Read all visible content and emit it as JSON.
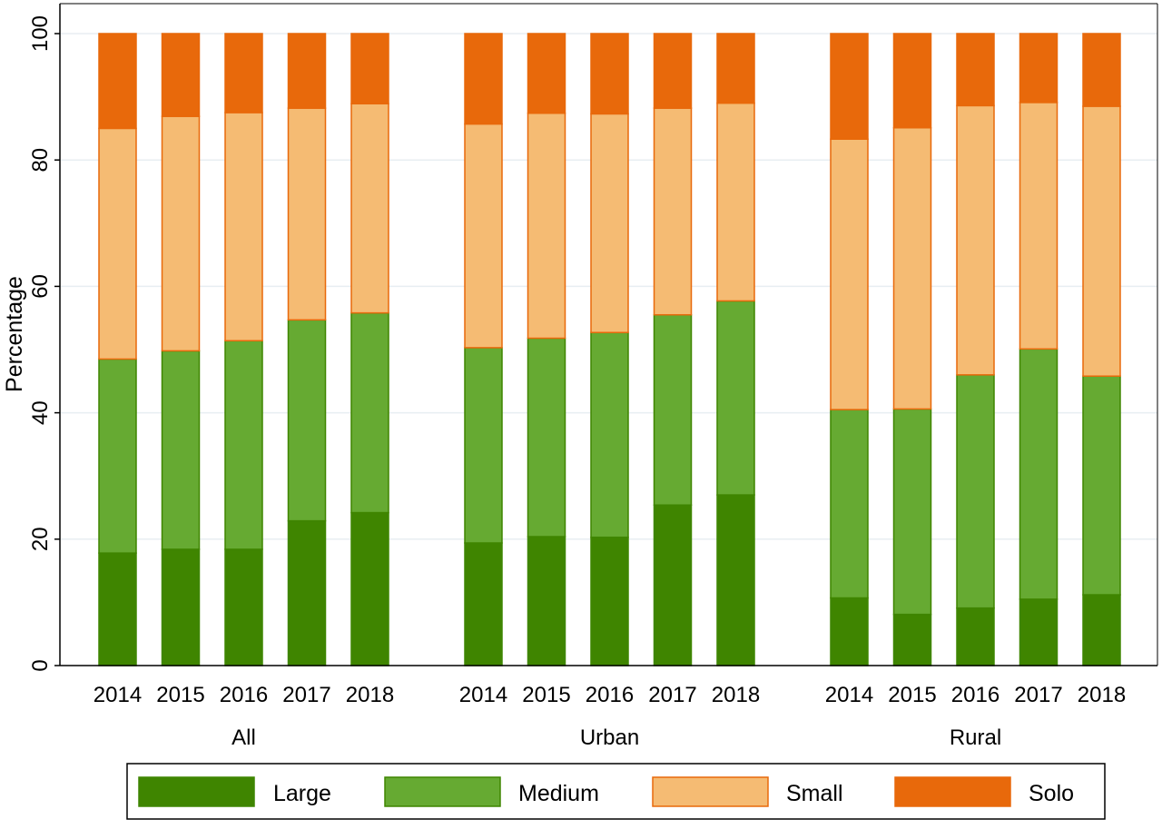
{
  "chart_data": {
    "type": "bar",
    "stacked": true,
    "percent": true,
    "ylabel": "Percentage",
    "ylim": [
      0,
      100
    ],
    "yticks": [
      "0",
      "20",
      "40",
      "60",
      "80",
      "100"
    ],
    "grid": true,
    "legend_position": "bottom",
    "groups": [
      {
        "name": "All",
        "categories": [
          "2014",
          "2015",
          "2016",
          "2017",
          "2018"
        ],
        "series": [
          {
            "name": "Large",
            "values": [
              17.8,
              18.4,
              18.4,
              22.9,
              24.2
            ]
          },
          {
            "name": "Medium",
            "values": [
              30.7,
              31.4,
              33.0,
              31.8,
              31.6
            ]
          },
          {
            "name": "Small",
            "values": [
              36.5,
              37.1,
              36.1,
              33.5,
              33.1
            ]
          },
          {
            "name": "Solo",
            "values": [
              15.0,
              13.1,
              12.5,
              11.8,
              11.1
            ]
          }
        ]
      },
      {
        "name": "Urban",
        "categories": [
          "2014",
          "2015",
          "2016",
          "2017",
          "2018"
        ],
        "series": [
          {
            "name": "Large",
            "values": [
              19.4,
              20.4,
              20.3,
              25.4,
              27.0
            ]
          },
          {
            "name": "Medium",
            "values": [
              30.9,
              31.4,
              32.4,
              30.1,
              30.7
            ]
          },
          {
            "name": "Small",
            "values": [
              35.4,
              35.6,
              34.6,
              32.7,
              31.3
            ]
          },
          {
            "name": "Solo",
            "values": [
              14.3,
              12.6,
              12.7,
              11.8,
              11.0
            ]
          }
        ]
      },
      {
        "name": "Rural",
        "categories": [
          "2014",
          "2015",
          "2016",
          "2017",
          "2018"
        ],
        "series": [
          {
            "name": "Large",
            "values": [
              10.7,
              8.1,
              9.1,
              10.5,
              11.2
            ]
          },
          {
            "name": "Medium",
            "values": [
              29.8,
              32.5,
              36.9,
              39.6,
              34.6
            ]
          },
          {
            "name": "Small",
            "values": [
              42.8,
              44.5,
              42.6,
              39.0,
              42.7
            ]
          },
          {
            "name": "Solo",
            "values": [
              16.7,
              14.9,
              11.4,
              10.9,
              11.5
            ]
          }
        ]
      }
    ],
    "colors": {
      "Large": "#3f8500",
      "Medium": "#66aa32",
      "Small": "#f5bb73",
      "Solo": "#e8690b"
    },
    "edge_colors": {
      "Large": "#3f8500",
      "Medium": "#3f8500",
      "Small": "#e8690b",
      "Solo": "#e8690b"
    }
  }
}
